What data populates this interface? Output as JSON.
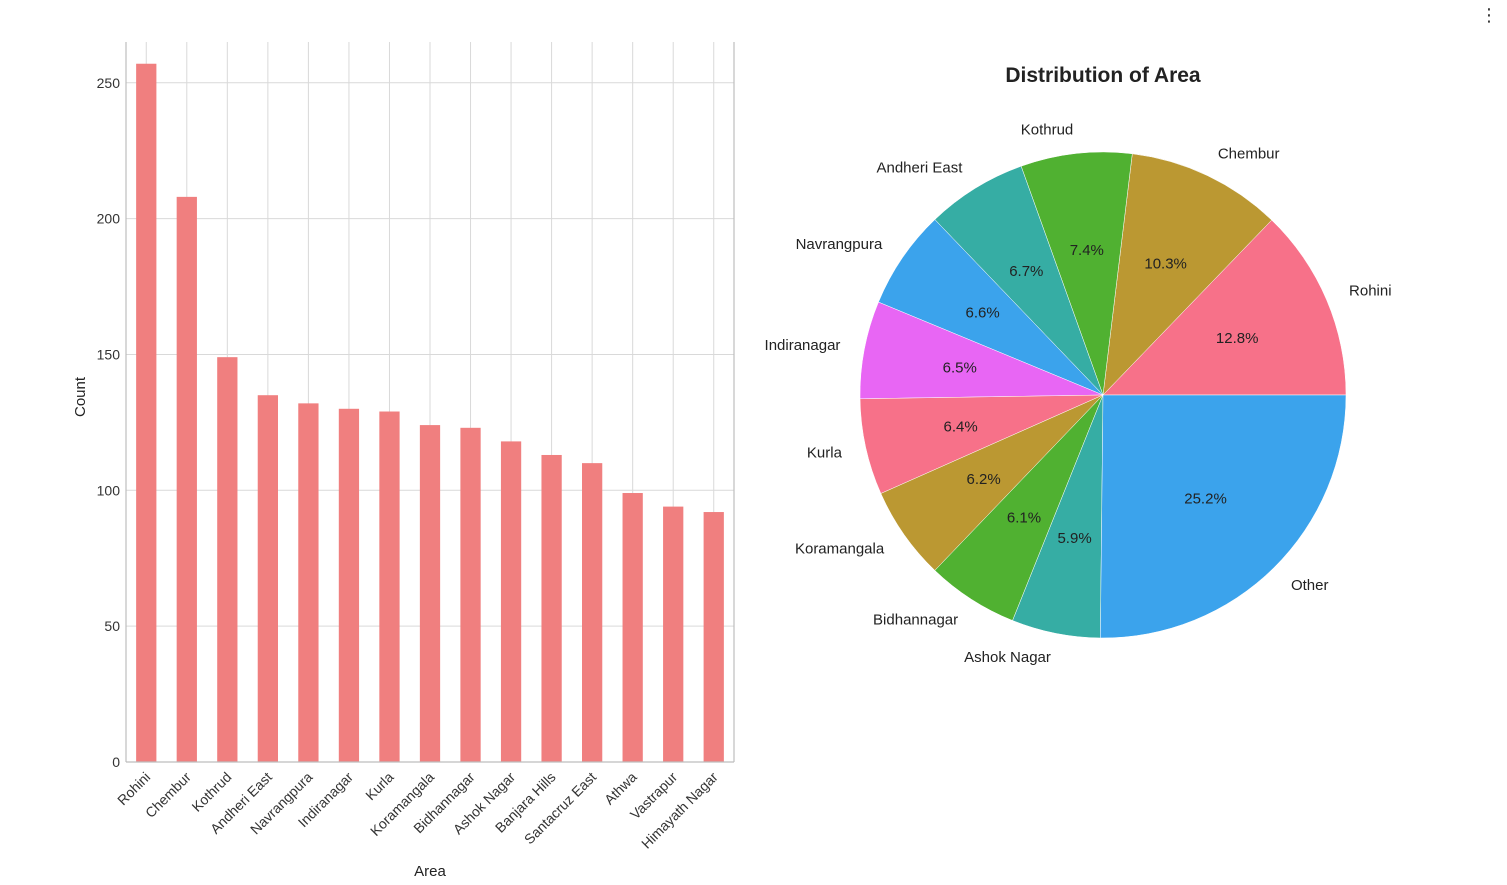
{
  "toolbar": {
    "menu_icon": "vertical-ellipsis-icon"
  },
  "chart_data": [
    {
      "type": "bar",
      "title": "",
      "xlabel": "Area",
      "ylabel": "Count",
      "ylim": [
        0,
        265
      ],
      "yticks": [
        0,
        50,
        100,
        150,
        200,
        250
      ],
      "grid": true,
      "color": "#F07F7F",
      "categories": [
        "Rohini",
        "Chembur",
        "Kothrud",
        "Andheri East",
        "Navrangpura",
        "Indiranagar",
        "Kurla",
        "Koramangala",
        "Bidhannagar",
        "Ashok Nagar",
        "Banjara Hills",
        "Santacruz East",
        "Athwa",
        "Vastrapur",
        "Himayath Nagar"
      ],
      "values": [
        257,
        208,
        149,
        135,
        132,
        130,
        129,
        124,
        123,
        118,
        113,
        110,
        99,
        94,
        92
      ]
    },
    {
      "type": "pie",
      "title": "Distribution of Area",
      "start_angle_deg": 0,
      "direction": "counterclockwise",
      "slices": [
        {
          "label": "Rohini",
          "value": 12.8,
          "pct_label": "12.8%",
          "color": "#F77189"
        },
        {
          "label": "Chembur",
          "value": 10.3,
          "pct_label": "10.3%",
          "color": "#BB9832"
        },
        {
          "label": "Kothrud",
          "value": 7.4,
          "pct_label": "7.4%",
          "color": "#50B131"
        },
        {
          "label": "Andheri East",
          "value": 6.7,
          "pct_label": "6.7%",
          "color": "#36ADA4"
        },
        {
          "label": "Navrangpura",
          "value": 6.6,
          "pct_label": "6.6%",
          "color": "#3BA3EC"
        },
        {
          "label": "Indiranagar",
          "value": 6.5,
          "pct_label": "6.5%",
          "color": "#E866F4"
        },
        {
          "label": "Kurla",
          "value": 6.4,
          "pct_label": "6.4%",
          "color": "#F77189"
        },
        {
          "label": "Koramangala",
          "value": 6.2,
          "pct_label": "6.2%",
          "color": "#BB9832"
        },
        {
          "label": "Bidhannagar",
          "value": 6.1,
          "pct_label": "6.1%",
          "color": "#50B131"
        },
        {
          "label": "Ashok Nagar",
          "value": 5.9,
          "pct_label": "5.9%",
          "color": "#36ADA4"
        },
        {
          "label": "Other",
          "value": 25.2,
          "pct_label": "25.2%",
          "color": "#3BA3EC"
        }
      ]
    }
  ]
}
